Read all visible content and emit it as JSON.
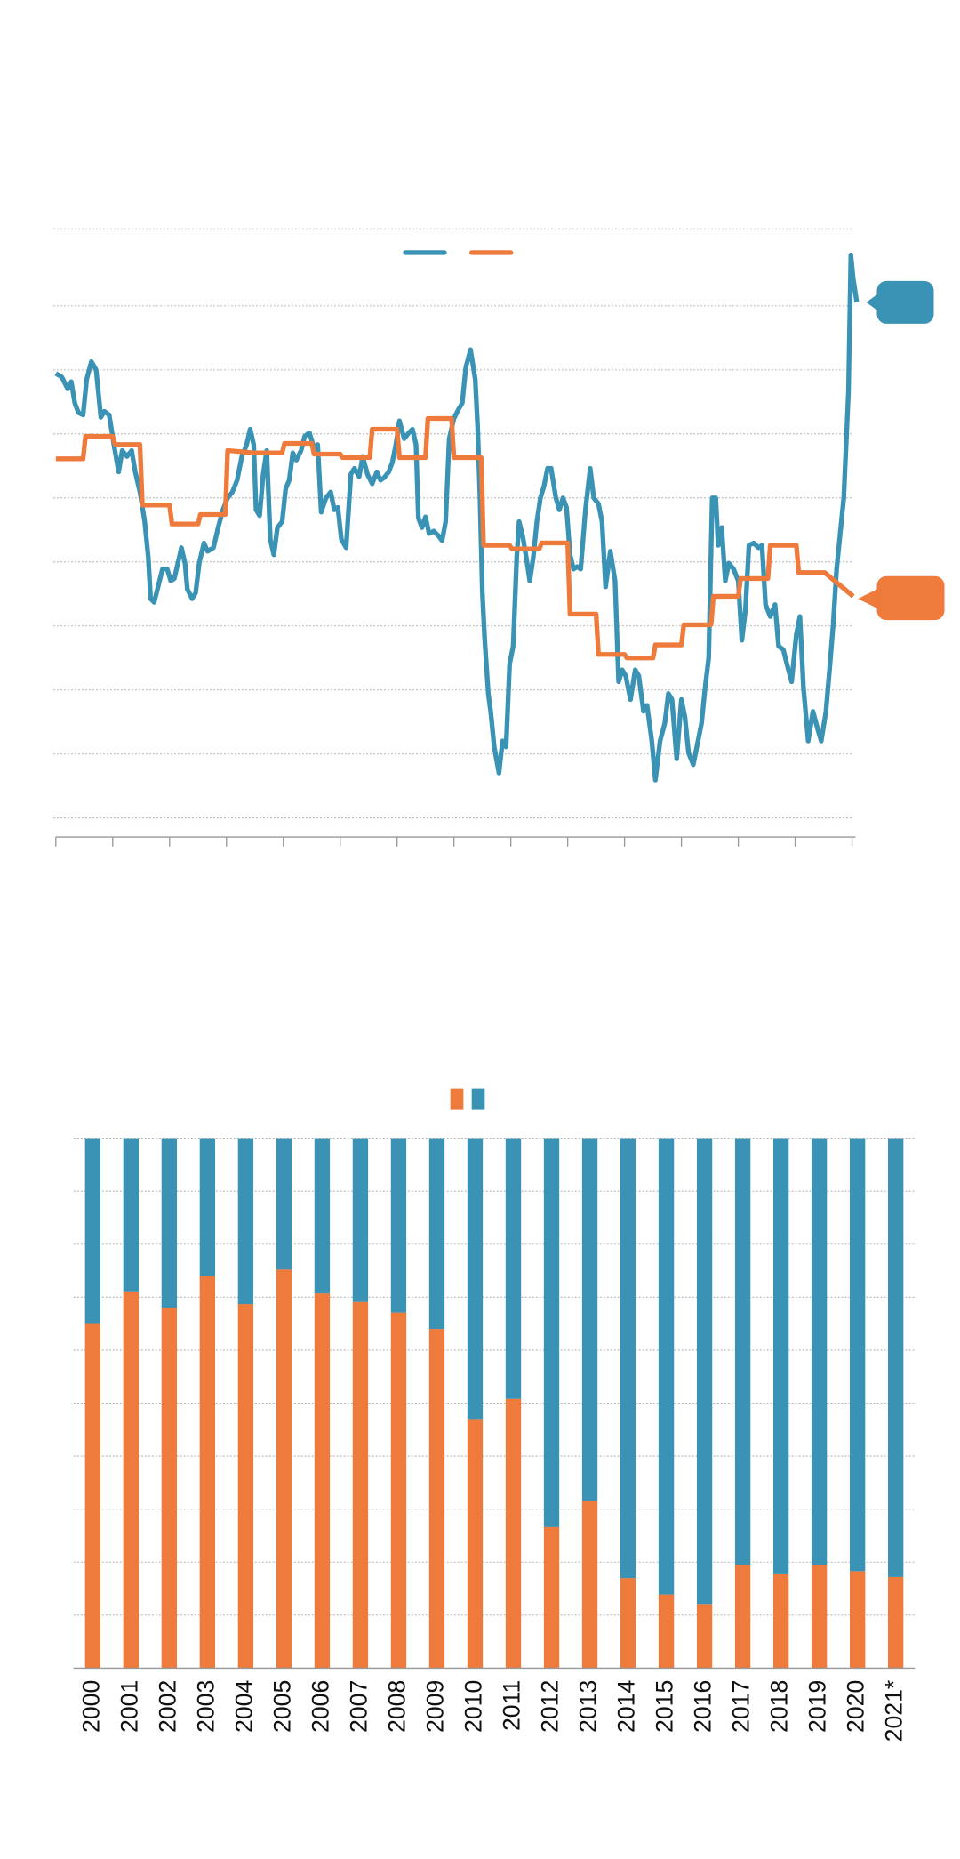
{
  "chart_data": [
    {
      "type": "line",
      "xlim": [
        0,
        675
      ],
      "xticks": [
        0,
        48,
        96,
        144,
        192,
        240,
        288,
        336,
        384,
        432,
        480,
        528,
        576,
        624,
        672
      ],
      "ylim": [
        0,
        497
      ],
      "yticks": [
        0,
        54,
        108,
        162,
        216,
        270,
        324,
        378,
        432,
        497
      ],
      "grid": true,
      "series": [
        {
          "color": "#3a93b5",
          "x": [
            0,
            5,
            10,
            13,
            16,
            19,
            23,
            26,
            30,
            34,
            38,
            41,
            45,
            49,
            53,
            56,
            60,
            64,
            67,
            71,
            75,
            78,
            80,
            83,
            87,
            90,
            94,
            97,
            100,
            103,
            106,
            109,
            111,
            115,
            118,
            121,
            125,
            128,
            133,
            137,
            141,
            145,
            149,
            153,
            157,
            161,
            164,
            167,
            169,
            172,
            175,
            178,
            181,
            184,
            187,
            191,
            194,
            197,
            200,
            203,
            207,
            210,
            214,
            218,
            221,
            224,
            228,
            232,
            235,
            238,
            241,
            245,
            249,
            252,
            256,
            259,
            263,
            267,
            271,
            274,
            277,
            281,
            284,
            287,
            290,
            294,
            298,
            301,
            304,
            306,
            309,
            312,
            315,
            319,
            323,
            326,
            329,
            332,
            336,
            340,
            343,
            346,
            350,
            354,
            356,
            358,
            360,
            362,
            365,
            367,
            370,
            374,
            377,
            380,
            383,
            386,
            389,
            391,
            394,
            397,
            400,
            403,
            406,
            409,
            412,
            415,
            418,
            422,
            425,
            428,
            431,
            434,
            437,
            440,
            443,
            447,
            451,
            454,
            458,
            461,
            464,
            468,
            472,
            475,
            478,
            481,
            485,
            489,
            492,
            496,
            499,
            503,
            506,
            510,
            514,
            517,
            520,
            524,
            528,
            531,
            534,
            538,
            541,
            545,
            548,
            551,
            554,
            557,
            559,
            562,
            565,
            568,
            572,
            576,
            579,
            582,
            585,
            589,
            593,
            596,
            599,
            603,
            607,
            610,
            614,
            617,
            621,
            625,
            628,
            631,
            635,
            639,
            643,
            646,
            650,
            653,
            656,
            659,
            662,
            665,
            669,
            671,
            673,
            676
          ],
          "values": [
            375,
            372,
            362,
            368,
            350,
            342,
            340,
            370,
            385,
            378,
            338,
            343,
            340,
            315,
            292,
            310,
            305,
            310,
            292,
            275,
            250,
            220,
            185,
            182,
            198,
            210,
            210,
            200,
            202,
            215,
            228,
            215,
            193,
            185,
            190,
            215,
            232,
            225,
            228,
            245,
            260,
            270,
            275,
            285,
            305,
            315,
            328,
            315,
            260,
            255,
            290,
            310,
            235,
            222,
            245,
            250,
            278,
            285,
            308,
            302,
            310,
            322,
            325,
            312,
            315,
            258,
            270,
            275,
            260,
            262,
            235,
            228,
            290,
            295,
            288,
            305,
            290,
            282,
            292,
            285,
            287,
            292,
            300,
            315,
            335,
            320,
            325,
            328,
            315,
            253,
            245,
            254,
            240,
            242,
            238,
            234,
            250,
            320,
            337,
            345,
            350,
            380,
            395,
            370,
            330,
            270,
            190,
            150,
            105,
            90,
            60,
            38,
            65,
            60,
            130,
            145,
            220,
            250,
            238,
            220,
            200,
            220,
            250,
            270,
            280,
            295,
            295,
            270,
            260,
            270,
            262,
            222,
            210,
            212,
            210,
            260,
            295,
            270,
            265,
            250,
            195,
            225,
            200,
            115,
            125,
            120,
            100,
            125,
            120,
            90,
            95,
            65,
            32,
            65,
            80,
            105,
            100,
            50,
            100,
            85,
            55,
            45,
            60,
            80,
            110,
            135,
            270,
            270,
            230,
            245,
            200,
            215,
            210,
            200,
            150,
            175,
            230,
            232,
            228,
            230,
            180,
            170,
            180,
            145,
            142,
            130,
            115,
            155,
            170,
            110,
            65,
            90,
            75,
            65,
            90,
            125,
            162,
            210,
            240,
            270,
            360,
            475,
            455,
            435
          ]
        },
        {
          "color": "#ee7a3b",
          "x": [
            0,
            23,
            25,
            48,
            50,
            71,
            73,
            96,
            98,
            120,
            122,
            143,
            145,
            168,
            191,
            193,
            216,
            218,
            240,
            242,
            265,
            267,
            288,
            290,
            312,
            314,
            334,
            336,
            359,
            361,
            383,
            385,
            408,
            410,
            432,
            434,
            456,
            458,
            480,
            482,
            504,
            506,
            528,
            530,
            553,
            555,
            576,
            578,
            601,
            603,
            625,
            627,
            649,
            673
          ],
          "values": [
            303,
            303,
            322,
            322,
            315,
            315,
            264,
            264,
            248,
            248,
            256,
            256,
            310,
            308,
            308,
            316,
            316,
            307,
            307,
            304,
            304,
            328,
            328,
            304,
            304,
            337,
            337,
            304,
            304,
            230,
            230,
            227,
            227,
            232,
            232,
            172,
            172,
            138,
            138,
            135,
            135,
            146,
            146,
            163,
            163,
            187,
            187,
            202,
            202,
            230,
            230,
            207,
            207,
            187
          ]
        }
      ]
    },
    {
      "type": "stacked_bar",
      "categories": [
        "2000",
        "2001",
        "2002",
        "2003",
        "2004",
        "2005",
        "2006",
        "2007",
        "2008",
        "2009",
        "2010",
        "2011",
        "2012",
        "2013",
        "2014",
        "2015",
        "2016",
        "2017",
        "2018",
        "2019",
        "2020",
        "2021*"
      ],
      "ylim": [
        0,
        100
      ],
      "yticks": [
        0,
        10,
        20,
        30,
        40,
        50,
        60,
        70,
        80,
        90,
        100
      ],
      "grid": true,
      "series": [
        {
          "color": "#ee7a3b",
          "values": [
            65.1,
            71.1,
            68.0,
            74.0,
            68.7,
            75.2,
            70.7,
            69.1,
            67.1,
            64.0,
            47.0,
            50.8,
            26.6,
            31.5,
            17.0,
            13.9,
            12.1,
            19.5,
            17.7,
            19.5,
            18.3,
            17.2
          ]
        },
        {
          "color": "#3a93b5",
          "values": [
            34.9,
            28.9,
            32.0,
            26.0,
            31.3,
            24.8,
            29.3,
            30.9,
            32.9,
            36.0,
            53.0,
            49.2,
            73.4,
            68.5,
            83.0,
            86.1,
            87.9,
            80.5,
            82.3,
            80.5,
            81.7,
            82.8
          ]
        }
      ]
    }
  ]
}
